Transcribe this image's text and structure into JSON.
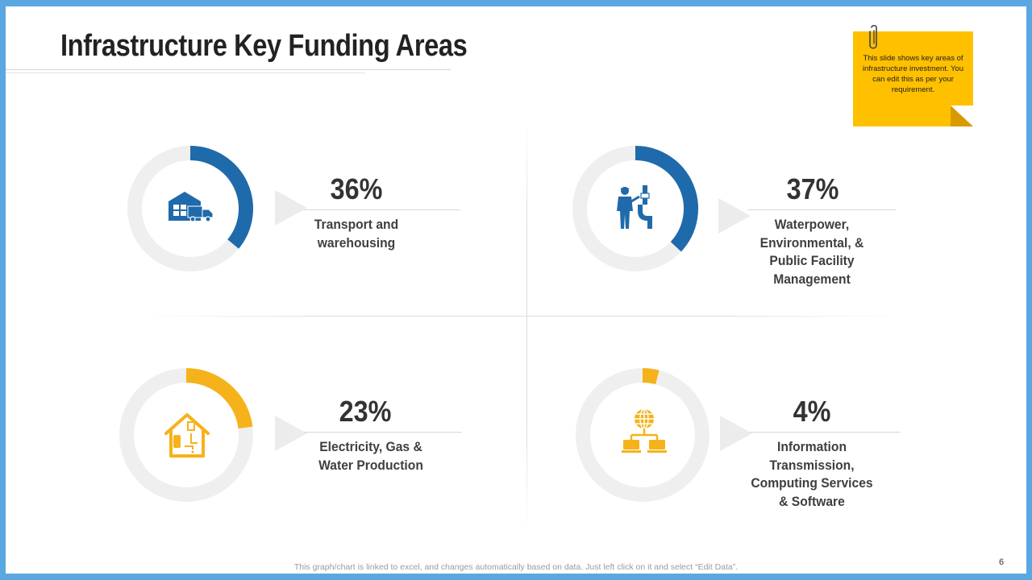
{
  "slide": {
    "title": "Infrastructure Key Funding Areas",
    "note": "This slide shows key areas of infrastructure investment. You can edit this as per your requirement.",
    "footer": "This graph/chart is linked to excel,  and changes automatically based on data. Just left click on it and select “Edit Data”.",
    "page_number": "6"
  },
  "colors": {
    "background_border": "#5ba7e1",
    "blue": "#1f6aaa",
    "yellow": "#f5b21b",
    "track": "#efefef",
    "note": "#ffc000"
  },
  "chart_data": [
    {
      "type": "pie",
      "variant": "donut",
      "value": 36,
      "value_label": "36%",
      "label": "Transport and\nwarehousing",
      "color": "#1f6aaa",
      "icon": "warehouse-truck-icon"
    },
    {
      "type": "pie",
      "variant": "donut",
      "value": 37,
      "value_label": "37%",
      "label": "Waterpower,\nEnvironmental, &\nPublic Facility\nManagement",
      "color": "#1f6aaa",
      "icon": "plumber-worker-icon"
    },
    {
      "type": "pie",
      "variant": "donut",
      "value": 23,
      "value_label": "23%",
      "label": "Electricity, Gas &\nWater Production",
      "color": "#f5b21b",
      "icon": "house-utilities-icon"
    },
    {
      "type": "pie",
      "variant": "donut",
      "value": 4,
      "value_label": "4%",
      "label": "Information\nTransmission,\nComputing Services\n& Software",
      "color": "#f5b21b",
      "icon": "globe-network-icon"
    }
  ]
}
